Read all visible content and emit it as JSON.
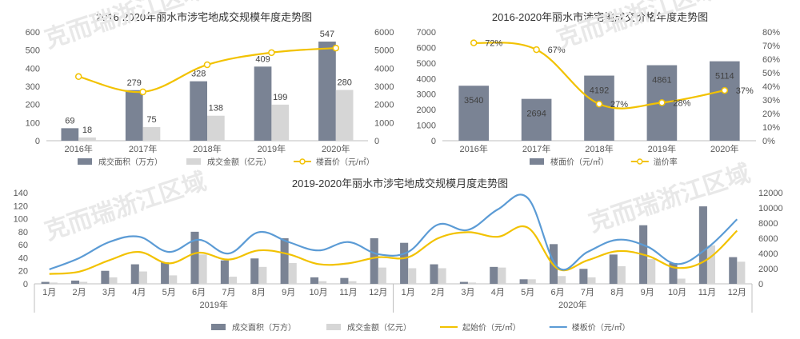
{
  "watermark": "克而瑞浙江区域",
  "colors": {
    "bar_primary": "#7a8394",
    "bar_secondary": "#d6d6d6",
    "line_gold": "#f2c200",
    "line_blue": "#5b9bd5",
    "axis": "#bfbfbf"
  },
  "chart_data": [
    {
      "type": "bar",
      "title": "2016-2020年丽水市涉宅地成交规模年度走势图",
      "categories": [
        "2016年",
        "2017年",
        "2018年",
        "2019年",
        "2020年"
      ],
      "series": [
        {
          "name": "成交面积（万方）",
          "values": [
            69,
            279,
            328,
            409,
            547
          ],
          "axis": "left"
        },
        {
          "name": "成交金额（亿元）",
          "values": [
            18,
            75,
            138,
            199,
            280
          ],
          "axis": "left"
        },
        {
          "name": "楼面价（元/㎡）",
          "type": "line",
          "values": [
            3540,
            2694,
            4192,
            4861,
            5114
          ],
          "axis": "right"
        }
      ],
      "left_ticks": [
        "0",
        "100",
        "200",
        "300",
        "400",
        "500",
        "600"
      ],
      "right_ticks": [
        "0",
        "1000",
        "2000",
        "3000",
        "4000",
        "5000",
        "6000"
      ],
      "ylim": [
        0,
        600
      ],
      "y2lim": [
        0,
        6000
      ],
      "legend": "bottom"
    },
    {
      "type": "bar",
      "title": "2016-2020年丽水市涉宅地成交价格年度走势图",
      "categories": [
        "2016年",
        "2017年",
        "2018年",
        "2019年",
        "2020年"
      ],
      "series": [
        {
          "name": "楼面价（元/㎡）",
          "values": [
            3540,
            2694,
            4192,
            4861,
            5114
          ],
          "axis": "left"
        },
        {
          "name": "溢价率",
          "type": "line",
          "values": [
            72,
            67,
            27,
            28,
            37
          ],
          "labels": [
            "72%",
            "67%",
            "27%",
            "28%",
            "37%"
          ],
          "axis": "right"
        }
      ],
      "left_ticks": [
        "0",
        "1000",
        "2000",
        "3000",
        "4000",
        "5000",
        "6000",
        "7000"
      ],
      "right_ticks": [
        "0%",
        "10%",
        "20%",
        "30%",
        "40%",
        "50%",
        "60%",
        "70%",
        "80%"
      ],
      "ylim": [
        0,
        7000
      ],
      "y2lim": [
        0,
        80
      ],
      "legend": "bottom"
    },
    {
      "type": "bar",
      "title": "2019-2020年丽水市涉宅地成交规模月度走势图",
      "categories": [
        "1月",
        "2月",
        "3月",
        "4月",
        "5月",
        "6月",
        "7月",
        "8月",
        "9月",
        "10月",
        "11月",
        "12月",
        "1月",
        "2月",
        "3月",
        "4月",
        "5月",
        "6月",
        "7月",
        "8月",
        "9月",
        "10月",
        "11月",
        "12月"
      ],
      "groups": [
        {
          "label": "2019年",
          "span": 12
        },
        {
          "label": "2020年",
          "span": 12
        }
      ],
      "series": [
        {
          "name": "成交面积（万方）",
          "axis": "left",
          "values": [
            3,
            5,
            20,
            30,
            33,
            80,
            36,
            39,
            70,
            10,
            9,
            70,
            63,
            30,
            3,
            26,
            7,
            61,
            23,
            45,
            90,
            32,
            119,
            41
          ]
        },
        {
          "name": "成交金额（亿元）",
          "axis": "left",
          "values": [
            2,
            3,
            10,
            19,
            13,
            45,
            11,
            26,
            32,
            4,
            4,
            25,
            24,
            24,
            2,
            25,
            7,
            12,
            10,
            27,
            38,
            8,
            59,
            34
          ]
        },
        {
          "name": "起始价（元/㎡）",
          "type": "line",
          "axis": "right",
          "values": [
            1300,
            1600,
            3100,
            4200,
            2700,
            4100,
            3200,
            4400,
            3900,
            2600,
            2700,
            3500,
            3500,
            6000,
            6800,
            6200,
            7400,
            2000,
            3100,
            4300,
            3700,
            2100,
            3200,
            7000
          ]
        },
        {
          "name": "楼板价（元/㎡）",
          "type": "line",
          "axis": "right",
          "values": [
            1900,
            3400,
            5500,
            6200,
            4200,
            5800,
            4000,
            6800,
            5500,
            4400,
            5500,
            3900,
            4200,
            7800,
            7100,
            9800,
            11300,
            2200,
            4200,
            5800,
            4900,
            2600,
            4700,
            8500
          ]
        }
      ],
      "left_ticks": [
        "0",
        "20",
        "40",
        "60",
        "80",
        "100",
        "120",
        "140"
      ],
      "right_ticks": [
        "0",
        "2000",
        "4000",
        "6000",
        "8000",
        "10000",
        "12000"
      ],
      "ylim": [
        0,
        140
      ],
      "y2lim": [
        0,
        12000
      ],
      "legend": "bottom"
    }
  ]
}
